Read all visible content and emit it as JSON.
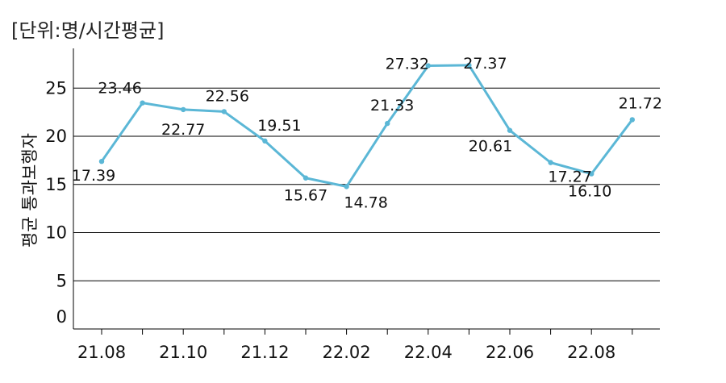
{
  "unit_label": "[단위:명/시간평균]",
  "chart_data": {
    "type": "line",
    "ylabel": "평균 통과보행자",
    "ylim": [
      0,
      30
    ],
    "yticks": [
      0,
      5,
      10,
      15,
      20,
      25
    ],
    "xtick_labels": [
      "21.08",
      "21.10",
      "21.12",
      "22.02",
      "22.04",
      "22.06",
      "22.08"
    ],
    "x": [
      "21.08",
      "21.09",
      "21.10",
      "21.11",
      "21.12",
      "22.01",
      "22.02",
      "22.03",
      "22.04",
      "22.05",
      "22.06",
      "22.07",
      "22.08",
      "22.09"
    ],
    "values": [
      17.39,
      23.46,
      22.77,
      22.56,
      19.51,
      15.67,
      14.78,
      21.33,
      27.32,
      27.37,
      20.61,
      17.27,
      16.1,
      21.72
    ],
    "value_labels": [
      "17.39",
      "23.46",
      "22.77",
      "22.56",
      "19.51",
      "15.67",
      "14.78",
      "21.33",
      "27.32",
      "27.37",
      "20.61",
      "17.27",
      "16.10",
      "21.72"
    ],
    "line_color": "#5bb7d6",
    "grid": true
  }
}
